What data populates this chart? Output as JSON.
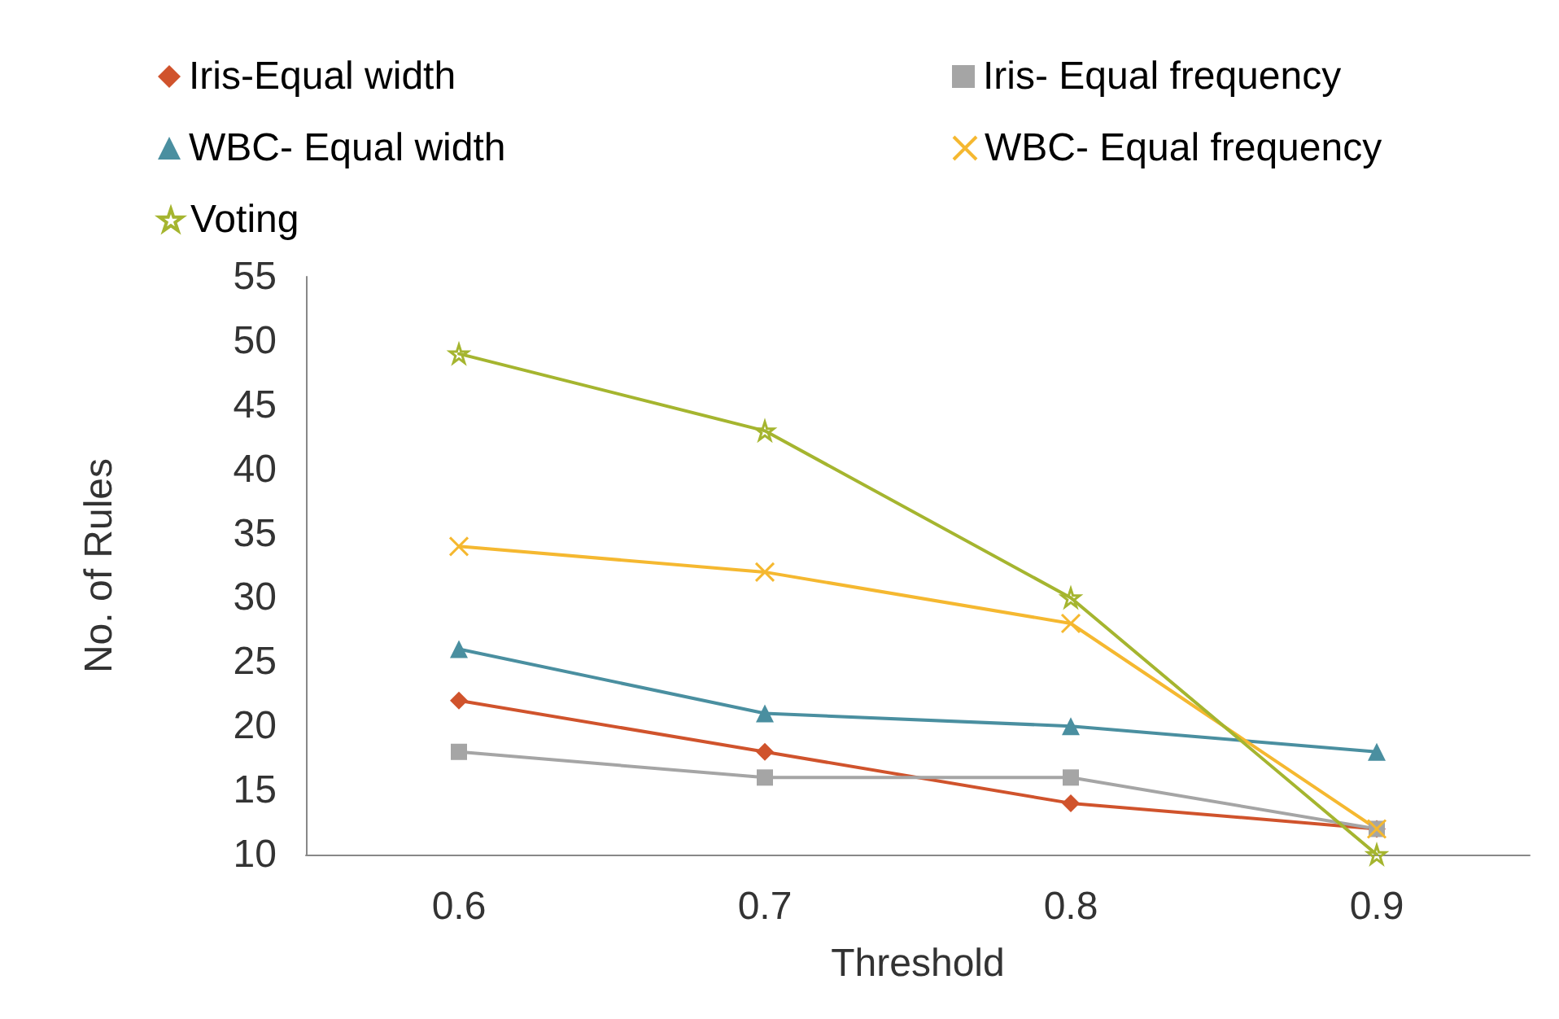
{
  "chart_data": {
    "type": "line",
    "xlabel": "Threshold",
    "ylabel": "No. of Rules",
    "categories": [
      "0.6",
      "0.7",
      "0.8",
      "0.9"
    ],
    "series": [
      {
        "name": "Iris-Equal width",
        "color": "#d0532c",
        "marker": "diamond",
        "values": [
          22,
          18,
          14,
          12
        ]
      },
      {
        "name": "Iris- Equal frequency",
        "color": "#a5a5a5",
        "marker": "square",
        "values": [
          18,
          16,
          16,
          12
        ]
      },
      {
        "name": "WBC- Equal width",
        "color": "#4a8fa0",
        "marker": "triangle",
        "values": [
          26,
          21,
          20,
          18
        ]
      },
      {
        "name": "WBC- Equal frequency",
        "color": "#f5b830",
        "marker": "cross",
        "values": [
          34,
          32,
          28,
          12
        ]
      },
      {
        "name": "Voting",
        "color": "#a5b52f",
        "marker": "star",
        "values": [
          49,
          43,
          30,
          10
        ]
      }
    ],
    "ylim": [
      10,
      55
    ],
    "yticks": [
      10,
      15,
      20,
      25,
      30,
      35,
      40,
      45,
      50,
      55
    ],
    "grid": false,
    "legend": "top",
    "line_style": "solid"
  }
}
